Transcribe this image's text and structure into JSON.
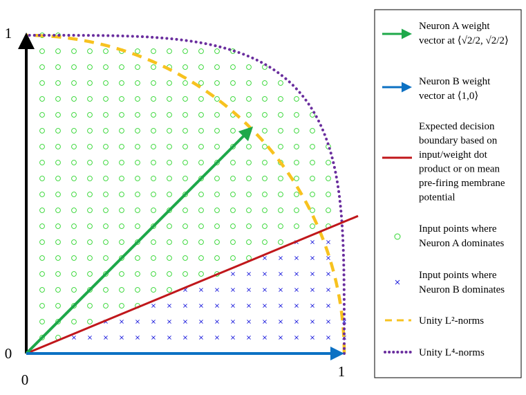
{
  "chart_data": {
    "type": "scatter",
    "xlim": [
      0,
      1
    ],
    "ylim": [
      0,
      1
    ],
    "x_ticks": [
      "0",
      "1"
    ],
    "y_ticks": [
      "0",
      "1"
    ],
    "grid": false,
    "legend_position": "right",
    "grid_step": 0.05,
    "neuron_a_weight": [
      0.7071,
      0.7071
    ],
    "neuron_b_weight": [
      1,
      0
    ],
    "decision_boundary": {
      "x": [
        0,
        1
      ],
      "y": [
        0,
        0.4142
      ]
    },
    "series": [
      {
        "name": "Neuron A weight vector at ⟨√2/2, √2/2⟩",
        "kind": "arrow",
        "color": "#1ea84a"
      },
      {
        "name": "Neuron B weight vector at ⟨1,0⟩",
        "kind": "arrow",
        "color": "#0c71c3"
      },
      {
        "name": "Expected decision boundary based on input/weight dot product or on mean pre-firing membrane potential",
        "kind": "line",
        "color": "#c0171b"
      },
      {
        "name": "Input points where Neuron A dominates",
        "kind": "scatter-circle",
        "color": "#2bd52b"
      },
      {
        "name": "Input points where Neuron B dominates",
        "kind": "scatter-x",
        "color": "#2020dd"
      },
      {
        "name": "Unity L²-norms",
        "kind": "dashed-curve",
        "color": "#f7c21f"
      },
      {
        "name": "Unity L⁴-norms",
        "kind": "dotted-curve",
        "color": "#6a2e9e"
      }
    ]
  },
  "legend": [
    {
      "lines": [
        "Neuron A weight",
        "vector at ⟨√2/2, √2/2⟩"
      ]
    },
    {
      "lines": [
        "Neuron B weight",
        "vector at ⟨1,0⟩"
      ]
    },
    {
      "lines": [
        "Expected decision",
        "boundary based on",
        "input/weight dot",
        "product or on mean",
        "pre-firing membrane",
        "potential"
      ]
    },
    {
      "lines": [
        "Input points where",
        "Neuron A dominates"
      ]
    },
    {
      "lines": [
        "Input points where",
        "Neuron B dominates"
      ]
    },
    {
      "lines": [
        "Unity L²-norms"
      ]
    },
    {
      "lines": [
        "Unity L⁴-norms"
      ]
    }
  ],
  "colors": {
    "axis": "#000000",
    "neuron_a": "#1ea84a",
    "neuron_b": "#0c71c3",
    "boundary": "#c0171b",
    "a_points": "#2bd52b",
    "b_points": "#2020dd",
    "l2": "#f7c21f",
    "l4": "#6a2e9e"
  }
}
